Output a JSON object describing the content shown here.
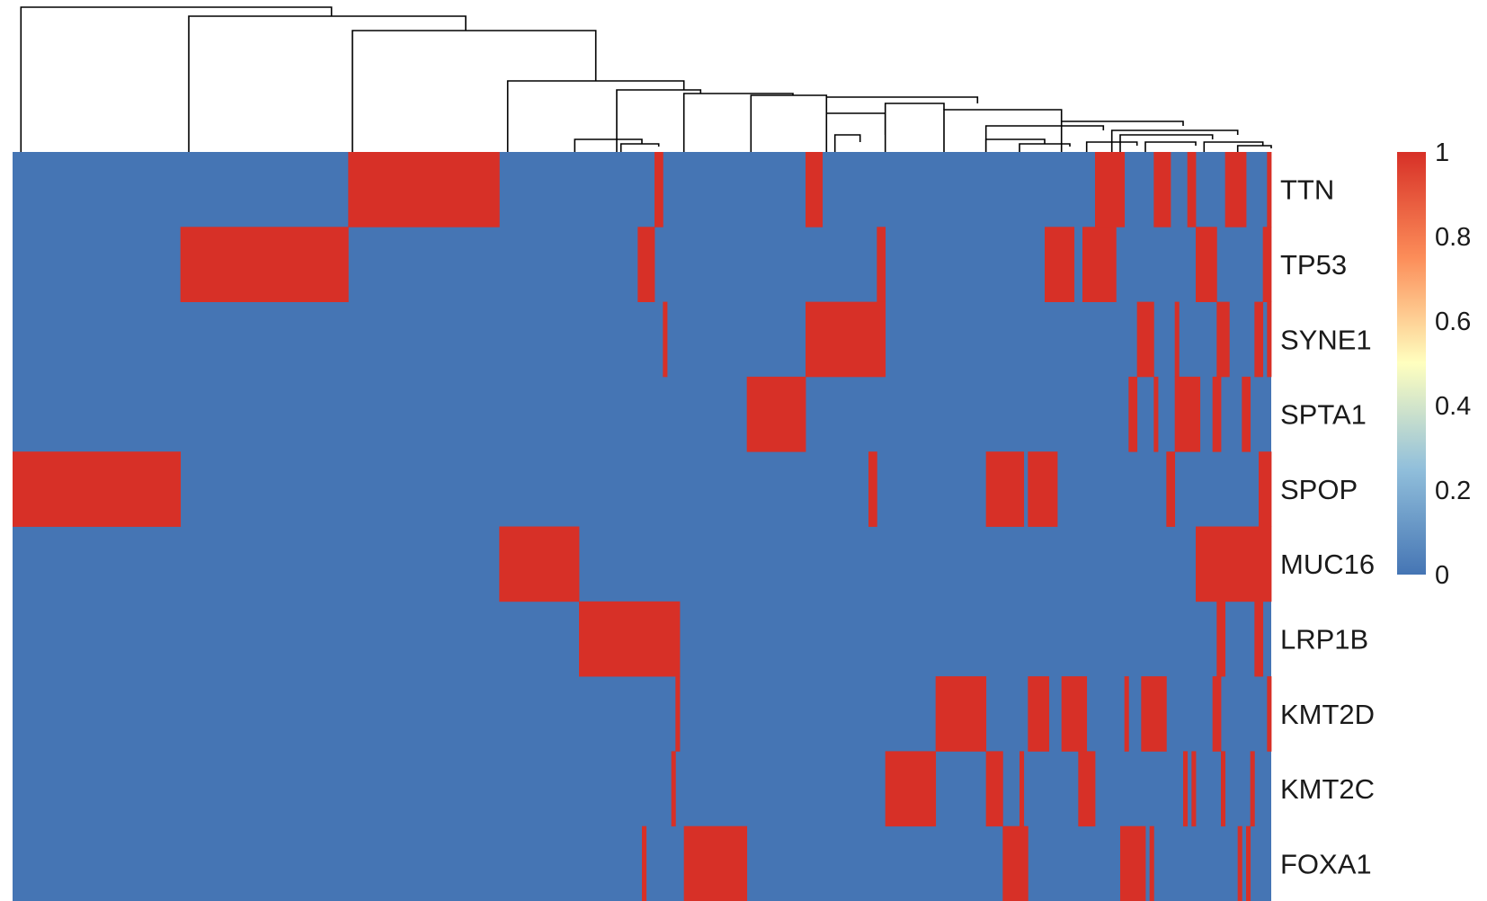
{
  "chart_data": {
    "type": "heatmap",
    "title": "",
    "rows": [
      "TTN",
      "TP53",
      "SYNE1",
      "SPTA1",
      "SPOP",
      "MUC16",
      "LRP1B",
      "KMT2D",
      "KMT2C",
      "FOXA1"
    ],
    "n_columns": 300,
    "value_range": [
      0,
      1
    ],
    "colorscale": {
      "stops": [
        {
          "value": 0,
          "color": "#4575b4"
        },
        {
          "value": 0.25,
          "color": "#91bfdb"
        },
        {
          "value": 0.5,
          "color": "#ffffbf"
        },
        {
          "value": 0.75,
          "color": "#fc8d59"
        },
        {
          "value": 1,
          "color": "#d73027"
        }
      ],
      "ticks": [
        "0",
        "0.2",
        "0.4",
        "0.6",
        "0.8",
        "1"
      ]
    },
    "mutated_column_ranges": {
      "TTN": [
        [
          80,
          116
        ],
        [
          153,
          155
        ],
        [
          189,
          193
        ],
        [
          258,
          265
        ],
        [
          272,
          276
        ],
        [
          280,
          282
        ],
        [
          289,
          294
        ],
        [
          299,
          300
        ]
      ],
      "TP53": [
        [
          40,
          80
        ],
        [
          149,
          153
        ],
        [
          206,
          208
        ],
        [
          246,
          253
        ],
        [
          255,
          263
        ],
        [
          282,
          287
        ],
        [
          298,
          300
        ]
      ],
      "SYNE1": [
        [
          155,
          156
        ],
        [
          189,
          208
        ],
        [
          268,
          272
        ],
        [
          277,
          278
        ],
        [
          287,
          290
        ],
        [
          296,
          298
        ],
        [
          299,
          300
        ]
      ],
      "SPTA1": [
        [
          175,
          189
        ],
        [
          266,
          268
        ],
        [
          272,
          273
        ],
        [
          277,
          283
        ],
        [
          286,
          288
        ],
        [
          293,
          295
        ]
      ],
      "SPOP": [
        [
          0,
          40
        ],
        [
          204,
          206
        ],
        [
          232,
          241
        ],
        [
          242,
          249
        ],
        [
          275,
          277
        ],
        [
          297,
          300
        ]
      ],
      "MUC16": [
        [
          116,
          135
        ],
        [
          282,
          300
        ]
      ],
      "LRP1B": [
        [
          135,
          159
        ],
        [
          287,
          289
        ],
        [
          296,
          298
        ]
      ],
      "KMT2D": [
        [
          158,
          159
        ],
        [
          220,
          232
        ],
        [
          242,
          247
        ],
        [
          250,
          256
        ],
        [
          265,
          266
        ],
        [
          269,
          275
        ],
        [
          286,
          288
        ],
        [
          299,
          300
        ]
      ],
      "KMT2C": [
        [
          157,
          158
        ],
        [
          208,
          220
        ],
        [
          232,
          236
        ],
        [
          240,
          241
        ],
        [
          254,
          258
        ],
        [
          279,
          280
        ],
        [
          281,
          282
        ],
        [
          288,
          289
        ],
        [
          295,
          296
        ]
      ],
      "FOXA1": [
        [
          150,
          151
        ],
        [
          160,
          175
        ],
        [
          236,
          242
        ],
        [
          264,
          270
        ],
        [
          271,
          272
        ],
        [
          292,
          293
        ],
        [
          294,
          295
        ]
      ]
    }
  }
}
